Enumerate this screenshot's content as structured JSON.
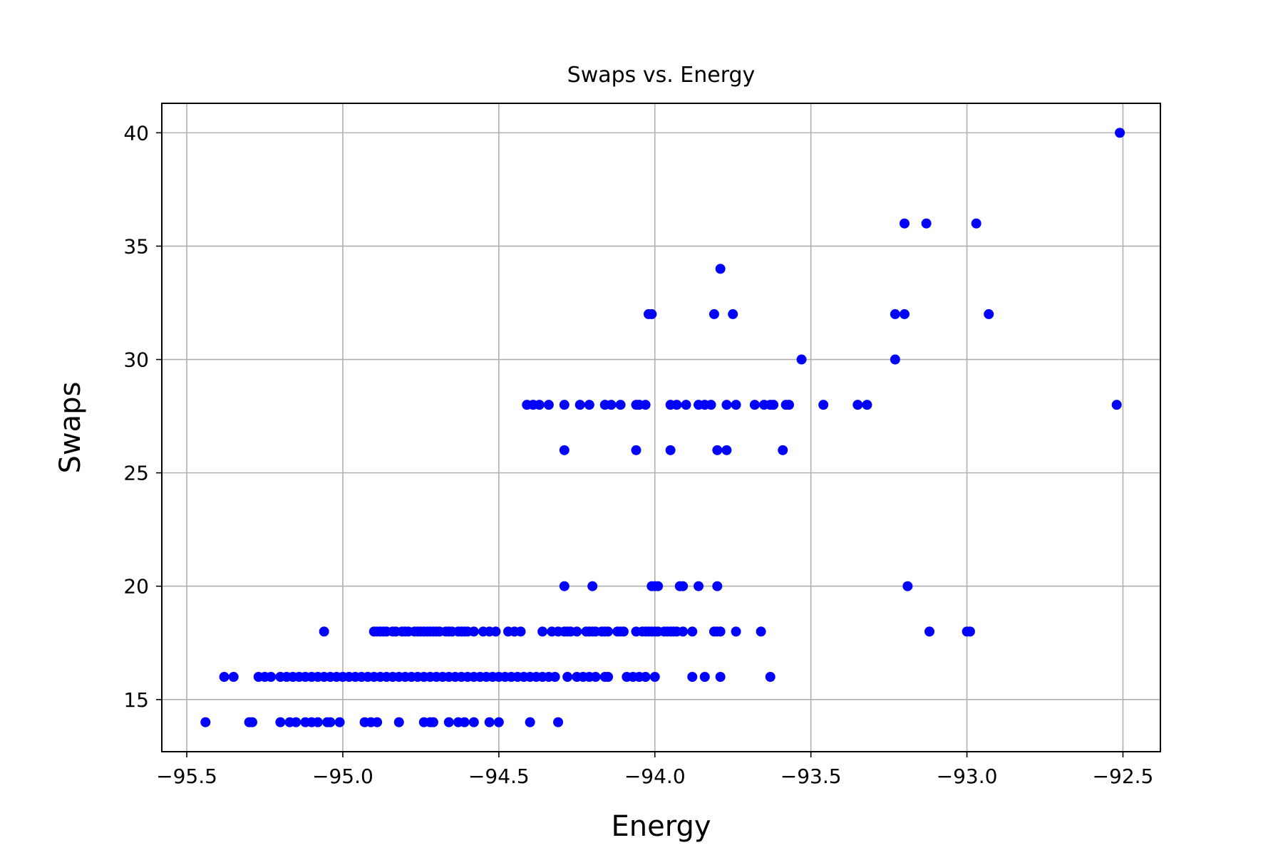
{
  "chart_data": {
    "type": "scatter",
    "title": "Swaps vs. Energy",
    "xlabel": "Energy",
    "ylabel": "Swaps",
    "xlim": [
      -95.58,
      -92.38
    ],
    "ylim": [
      12.7,
      41.3
    ],
    "xticks": [
      -95.5,
      -95.0,
      -94.5,
      -94.0,
      -93.5,
      -93.0,
      -92.5
    ],
    "xtick_labels": [
      "−95.5",
      "−95.0",
      "−94.5",
      "−94.0",
      "−93.5",
      "−93.0",
      "−92.5"
    ],
    "yticks": [
      15,
      20,
      25,
      30,
      35,
      40
    ],
    "ytick_labels": [
      "15",
      "20",
      "25",
      "30",
      "35",
      "40"
    ],
    "grid": true,
    "marker_color": "#0000ff",
    "points": [
      [
        -92.51,
        40
      ],
      [
        -93.2,
        36
      ],
      [
        -93.13,
        36
      ],
      [
        -92.97,
        36
      ],
      [
        -93.79,
        34
      ],
      [
        -94.02,
        32
      ],
      [
        -94.01,
        32
      ],
      [
        -93.81,
        32
      ],
      [
        -93.75,
        32
      ],
      [
        -93.23,
        32
      ],
      [
        -93.2,
        32
      ],
      [
        -92.93,
        32
      ],
      [
        -93.53,
        30
      ],
      [
        -93.23,
        30
      ],
      [
        -92.52,
        28
      ],
      [
        -94.41,
        28
      ],
      [
        -94.39,
        28
      ],
      [
        -94.37,
        28
      ],
      [
        -94.34,
        28
      ],
      [
        -94.29,
        28
      ],
      [
        -94.24,
        28
      ],
      [
        -94.21,
        28
      ],
      [
        -94.16,
        28
      ],
      [
        -94.14,
        28
      ],
      [
        -94.11,
        28
      ],
      [
        -94.06,
        28
      ],
      [
        -94.05,
        28
      ],
      [
        -94.03,
        28
      ],
      [
        -93.95,
        28
      ],
      [
        -93.93,
        28
      ],
      [
        -93.9,
        28
      ],
      [
        -93.86,
        28
      ],
      [
        -93.84,
        28
      ],
      [
        -93.82,
        28
      ],
      [
        -93.77,
        28
      ],
      [
        -93.74,
        28
      ],
      [
        -93.68,
        28
      ],
      [
        -93.65,
        28
      ],
      [
        -93.63,
        28
      ],
      [
        -93.62,
        28
      ],
      [
        -93.58,
        28
      ],
      [
        -93.57,
        28
      ],
      [
        -93.46,
        28
      ],
      [
        -93.35,
        28
      ],
      [
        -93.32,
        28
      ],
      [
        -94.29,
        26
      ],
      [
        -94.06,
        26
      ],
      [
        -93.95,
        26
      ],
      [
        -93.8,
        26
      ],
      [
        -93.77,
        26
      ],
      [
        -93.59,
        26
      ],
      [
        -94.29,
        20
      ],
      [
        -94.2,
        20
      ],
      [
        -94.01,
        20
      ],
      [
        -94.0,
        20
      ],
      [
        -93.99,
        20
      ],
      [
        -93.92,
        20
      ],
      [
        -93.91,
        20
      ],
      [
        -93.86,
        20
      ],
      [
        -93.8,
        20
      ],
      [
        -93.19,
        20
      ],
      [
        -95.06,
        18
      ],
      [
        -94.9,
        18
      ],
      [
        -94.89,
        18
      ],
      [
        -94.88,
        18
      ],
      [
        -94.87,
        18
      ],
      [
        -94.86,
        18
      ],
      [
        -94.84,
        18
      ],
      [
        -94.83,
        18
      ],
      [
        -94.81,
        18
      ],
      [
        -94.8,
        18
      ],
      [
        -94.79,
        18
      ],
      [
        -94.77,
        18
      ],
      [
        -94.76,
        18
      ],
      [
        -94.75,
        18
      ],
      [
        -94.74,
        18
      ],
      [
        -94.73,
        18
      ],
      [
        -94.72,
        18
      ],
      [
        -94.71,
        18
      ],
      [
        -94.7,
        18
      ],
      [
        -94.69,
        18
      ],
      [
        -94.67,
        18
      ],
      [
        -94.66,
        18
      ],
      [
        -94.65,
        18
      ],
      [
        -94.63,
        18
      ],
      [
        -94.62,
        18
      ],
      [
        -94.61,
        18
      ],
      [
        -94.6,
        18
      ],
      [
        -94.58,
        18
      ],
      [
        -94.55,
        18
      ],
      [
        -94.53,
        18
      ],
      [
        -94.51,
        18
      ],
      [
        -94.47,
        18
      ],
      [
        -94.45,
        18
      ],
      [
        -94.43,
        18
      ],
      [
        -94.36,
        18
      ],
      [
        -94.33,
        18
      ],
      [
        -94.31,
        18
      ],
      [
        -94.29,
        18
      ],
      [
        -94.28,
        18
      ],
      [
        -94.27,
        18
      ],
      [
        -94.25,
        18
      ],
      [
        -94.22,
        18
      ],
      [
        -94.21,
        18
      ],
      [
        -94.2,
        18
      ],
      [
        -94.19,
        18
      ],
      [
        -94.17,
        18
      ],
      [
        -94.16,
        18
      ],
      [
        -94.15,
        18
      ],
      [
        -94.12,
        18
      ],
      [
        -94.11,
        18
      ],
      [
        -94.1,
        18
      ],
      [
        -94.06,
        18
      ],
      [
        -94.04,
        18
      ],
      [
        -94.03,
        18
      ],
      [
        -94.02,
        18
      ],
      [
        -94.01,
        18
      ],
      [
        -94.0,
        18
      ],
      [
        -93.99,
        18
      ],
      [
        -93.97,
        18
      ],
      [
        -93.96,
        18
      ],
      [
        -93.95,
        18
      ],
      [
        -93.94,
        18
      ],
      [
        -93.93,
        18
      ],
      [
        -93.91,
        18
      ],
      [
        -93.88,
        18
      ],
      [
        -93.81,
        18
      ],
      [
        -93.8,
        18
      ],
      [
        -93.79,
        18
      ],
      [
        -93.74,
        18
      ],
      [
        -93.66,
        18
      ],
      [
        -93.12,
        18
      ],
      [
        -93.0,
        18
      ],
      [
        -92.99,
        18
      ],
      [
        -95.38,
        16
      ],
      [
        -95.35,
        16
      ],
      [
        -95.27,
        16
      ],
      [
        -95.25,
        16
      ],
      [
        -95.23,
        16
      ],
      [
        -95.2,
        16
      ],
      [
        -95.18,
        16
      ],
      [
        -95.16,
        16
      ],
      [
        -95.14,
        16
      ],
      [
        -95.12,
        16
      ],
      [
        -95.1,
        16
      ],
      [
        -95.08,
        16
      ],
      [
        -95.06,
        16
      ],
      [
        -95.04,
        16
      ],
      [
        -95.02,
        16
      ],
      [
        -95.0,
        16
      ],
      [
        -94.98,
        16
      ],
      [
        -94.96,
        16
      ],
      [
        -94.94,
        16
      ],
      [
        -94.92,
        16
      ],
      [
        -94.9,
        16
      ],
      [
        -94.88,
        16
      ],
      [
        -94.86,
        16
      ],
      [
        -94.84,
        16
      ],
      [
        -94.82,
        16
      ],
      [
        -94.8,
        16
      ],
      [
        -94.78,
        16
      ],
      [
        -94.76,
        16
      ],
      [
        -94.74,
        16
      ],
      [
        -94.72,
        16
      ],
      [
        -94.7,
        16
      ],
      [
        -94.68,
        16
      ],
      [
        -94.66,
        16
      ],
      [
        -94.64,
        16
      ],
      [
        -94.62,
        16
      ],
      [
        -94.6,
        16
      ],
      [
        -94.58,
        16
      ],
      [
        -94.56,
        16
      ],
      [
        -94.54,
        16
      ],
      [
        -94.52,
        16
      ],
      [
        -94.5,
        16
      ],
      [
        -94.48,
        16
      ],
      [
        -94.46,
        16
      ],
      [
        -94.44,
        16
      ],
      [
        -94.42,
        16
      ],
      [
        -94.4,
        16
      ],
      [
        -94.38,
        16
      ],
      [
        -94.36,
        16
      ],
      [
        -94.34,
        16
      ],
      [
        -94.32,
        16
      ],
      [
        -94.28,
        16
      ],
      [
        -94.25,
        16
      ],
      [
        -94.23,
        16
      ],
      [
        -94.21,
        16
      ],
      [
        -94.19,
        16
      ],
      [
        -94.16,
        16
      ],
      [
        -94.15,
        16
      ],
      [
        -94.09,
        16
      ],
      [
        -94.07,
        16
      ],
      [
        -94.05,
        16
      ],
      [
        -94.03,
        16
      ],
      [
        -94.0,
        16
      ],
      [
        -93.88,
        16
      ],
      [
        -93.84,
        16
      ],
      [
        -93.79,
        16
      ],
      [
        -93.63,
        16
      ],
      [
        -95.44,
        14
      ],
      [
        -95.3,
        14
      ],
      [
        -95.29,
        14
      ],
      [
        -95.2,
        14
      ],
      [
        -95.17,
        14
      ],
      [
        -95.15,
        14
      ],
      [
        -95.12,
        14
      ],
      [
        -95.1,
        14
      ],
      [
        -95.08,
        14
      ],
      [
        -95.05,
        14
      ],
      [
        -95.04,
        14
      ],
      [
        -95.01,
        14
      ],
      [
        -94.93,
        14
      ],
      [
        -94.91,
        14
      ],
      [
        -94.89,
        14
      ],
      [
        -94.82,
        14
      ],
      [
        -94.74,
        14
      ],
      [
        -94.72,
        14
      ],
      [
        -94.71,
        14
      ],
      [
        -94.66,
        14
      ],
      [
        -94.63,
        14
      ],
      [
        -94.61,
        14
      ],
      [
        -94.58,
        14
      ],
      [
        -94.53,
        14
      ],
      [
        -94.5,
        14
      ],
      [
        -94.4,
        14
      ],
      [
        -94.31,
        14
      ]
    ]
  }
}
